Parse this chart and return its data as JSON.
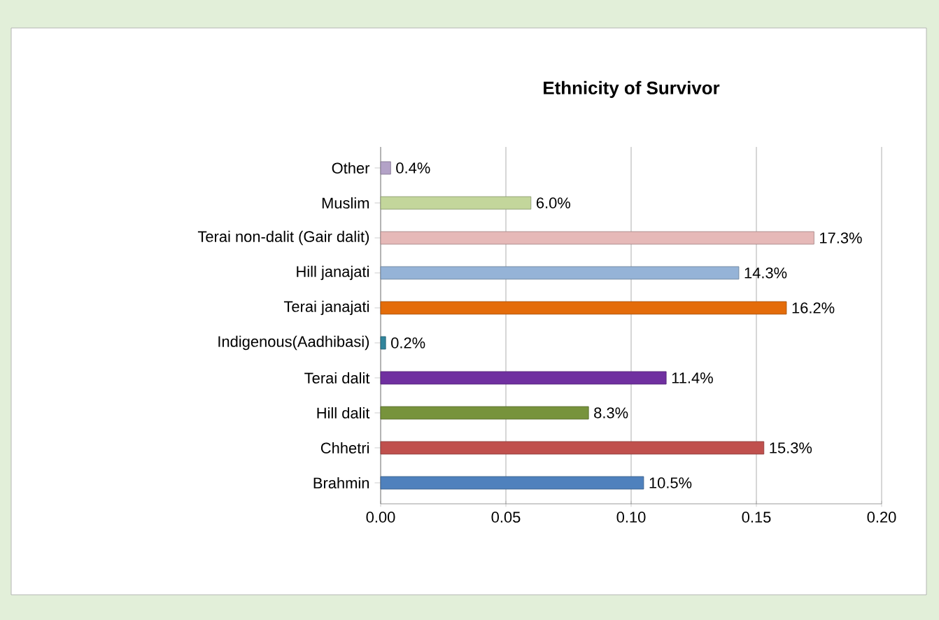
{
  "chart_data": {
    "type": "bar",
    "orientation": "horizontal",
    "title": "Ethnicity of Survivor",
    "categories": [
      "Other",
      "Muslim",
      "Terai non-dalit (Gair dalit)",
      "Hill janajati",
      "Terai janajati",
      "Indigenous(Aadhibasi)",
      "Terai dalit",
      "Hill dalit",
      "Chhetri",
      "Brahmin"
    ],
    "values": [
      0.004,
      0.06,
      0.173,
      0.143,
      0.162,
      0.002,
      0.114,
      0.083,
      0.153,
      0.105
    ],
    "value_labels": [
      "0.4%",
      "6.0%",
      "17.3%",
      "14.3%",
      "16.2%",
      "0.2%",
      "11.4%",
      "8.3%",
      "15.3%",
      "10.5%"
    ],
    "colors": [
      "#b3a2c7",
      "#c3d69b",
      "#e6b9b8",
      "#95b3d7",
      "#e46c0a",
      "#31859c",
      "#7030a0",
      "#77933c",
      "#c0504d",
      "#4f81bd"
    ],
    "xlim": [
      0,
      0.2
    ],
    "xticks": [
      {
        "value": 0,
        "label": "0.00"
      },
      {
        "value": 0.05,
        "label": "0.05"
      },
      {
        "value": 0.1,
        "label": "0.10"
      },
      {
        "value": 0.15,
        "label": "0.15"
      },
      {
        "value": 0.2,
        "label": "0.20"
      }
    ],
    "grid": "x"
  }
}
